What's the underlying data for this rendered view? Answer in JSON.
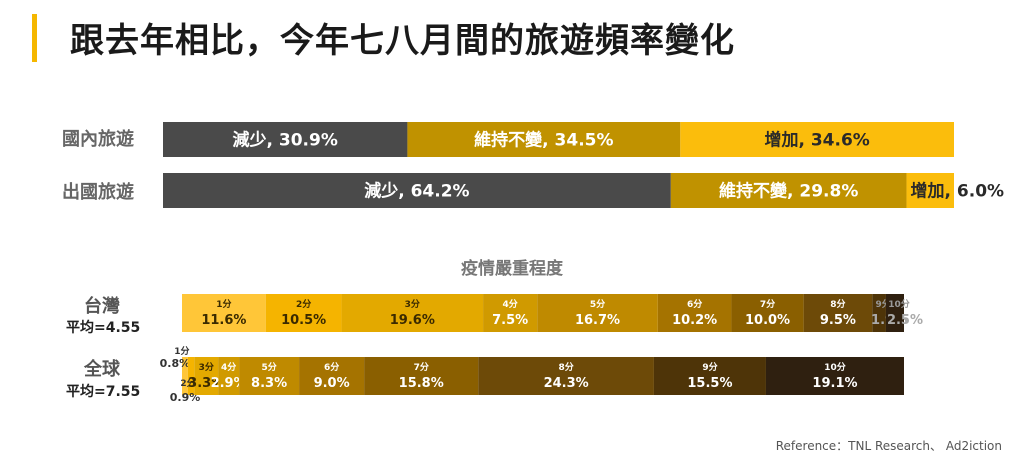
{
  "title": "跟去年相比，今年七八月間的旅遊頻率變化",
  "top_chart": {
    "rows": [
      {
        "label": "國內旅遊",
        "segments": [
          {
            "name": "減少",
            "value": 30.9,
            "text": "減少, 30.9%"
          },
          {
            "name": "維持不變",
            "value": 34.5,
            "text": "維持不變, 34.5%"
          },
          {
            "name": "增加",
            "value": 34.6,
            "text": "增加, 34.6%"
          }
        ]
      },
      {
        "label": "出國旅遊",
        "segments": [
          {
            "name": "減少",
            "value": 64.2,
            "text": "減少, 64.2%"
          },
          {
            "name": "維持不變",
            "value": 29.8,
            "text": "維持不變, 29.8%"
          },
          {
            "name": "增加",
            "value": 6.0,
            "text": "增加, 6.0%"
          }
        ]
      }
    ]
  },
  "bottom_chart": {
    "title": "疫情嚴重程度",
    "rows": [
      {
        "label": "台灣",
        "sub_label": "平均=4.55",
        "segments": [
          {
            "score": "1分",
            "value": 11.6,
            "text": "11.6%"
          },
          {
            "score": "2分",
            "value": 10.5,
            "text": "10.5%"
          },
          {
            "score": "3分",
            "value": 19.6,
            "text": "19.6%"
          },
          {
            "score": "4分",
            "value": 7.5,
            "text": "7.5%"
          },
          {
            "score": "5分",
            "value": 16.7,
            "text": "16.7%"
          },
          {
            "score": "6分",
            "value": 10.2,
            "text": "10.2%"
          },
          {
            "score": "7分",
            "value": 10.0,
            "text": "10.0%"
          },
          {
            "score": "8分",
            "value": 9.5,
            "text": "9.5%"
          },
          {
            "score": "9分",
            "value": 1.9,
            "text": "1.9%"
          },
          {
            "score": "10分",
            "value": 2.5,
            "text": "2.5%"
          }
        ]
      },
      {
        "label": "全球",
        "sub_label": "平均=7.55",
        "segments": [
          {
            "score": "1分",
            "value": 0.8,
            "text": "0.8%"
          },
          {
            "score": "2分",
            "value": 0.9,
            "text": "0.9%"
          },
          {
            "score": "3分",
            "value": 3.3,
            "text": "3.3%"
          },
          {
            "score": "4分",
            "value": 2.9,
            "text": "2.9%"
          },
          {
            "score": "5分",
            "value": 8.3,
            "text": "8.3%"
          },
          {
            "score": "6分",
            "value": 9.0,
            "text": "9.0%"
          },
          {
            "score": "7分",
            "value": 15.8,
            "text": "15.8%"
          },
          {
            "score": "8分",
            "value": 24.3,
            "text": "24.3%"
          },
          {
            "score": "9分",
            "value": 15.5,
            "text": "15.5%"
          },
          {
            "score": "10分",
            "value": 19.1,
            "text": "19.1%"
          }
        ]
      }
    ]
  },
  "reference": "Reference：TNL Research、 Ad2iction",
  "colors": {
    "top": [
      "#4a4a4a",
      "#c09200",
      "#fbbd0c"
    ],
    "scale": [
      "#ffc638",
      "#f5b400",
      "#e3a900",
      "#d09a00",
      "#bf8a00",
      "#a57300",
      "#8a5f00",
      "#6d4a08",
      "#4e3408",
      "#2f2010"
    ],
    "title_bar": "#f5b700"
  },
  "chart_data": [
    {
      "type": "bar",
      "orientation": "horizontal",
      "stacked": true,
      "categories": [
        "國內旅遊",
        "出國旅遊"
      ],
      "series": [
        {
          "name": "減少",
          "values": [
            30.9,
            64.2
          ]
        },
        {
          "name": "維持不變",
          "values": [
            34.5,
            29.8
          ]
        },
        {
          "name": "增加",
          "values": [
            34.6,
            6.0
          ]
        }
      ],
      "title": "跟去年相比，今年七八月間的旅遊頻率變化"
    },
    {
      "type": "bar",
      "orientation": "horizontal",
      "stacked": true,
      "categories": [
        "台灣",
        "全球"
      ],
      "series": [
        {
          "name": "1分",
          "values": [
            11.6,
            0.8
          ]
        },
        {
          "name": "2分",
          "values": [
            10.5,
            0.9
          ]
        },
        {
          "name": "3分",
          "values": [
            19.6,
            3.3
          ]
        },
        {
          "name": "4分",
          "values": [
            7.5,
            2.9
          ]
        },
        {
          "name": "5分",
          "values": [
            16.7,
            8.3
          ]
        },
        {
          "name": "6分",
          "values": [
            10.2,
            9.0
          ]
        },
        {
          "name": "7分",
          "values": [
            10.0,
            15.8
          ]
        },
        {
          "name": "8分",
          "values": [
            9.5,
            24.3
          ]
        },
        {
          "name": "9分",
          "values": [
            1.9,
            15.5
          ]
        },
        {
          "name": "10分",
          "values": [
            2.5,
            19.1
          ]
        }
      ],
      "title": "疫情嚴重程度"
    }
  ]
}
